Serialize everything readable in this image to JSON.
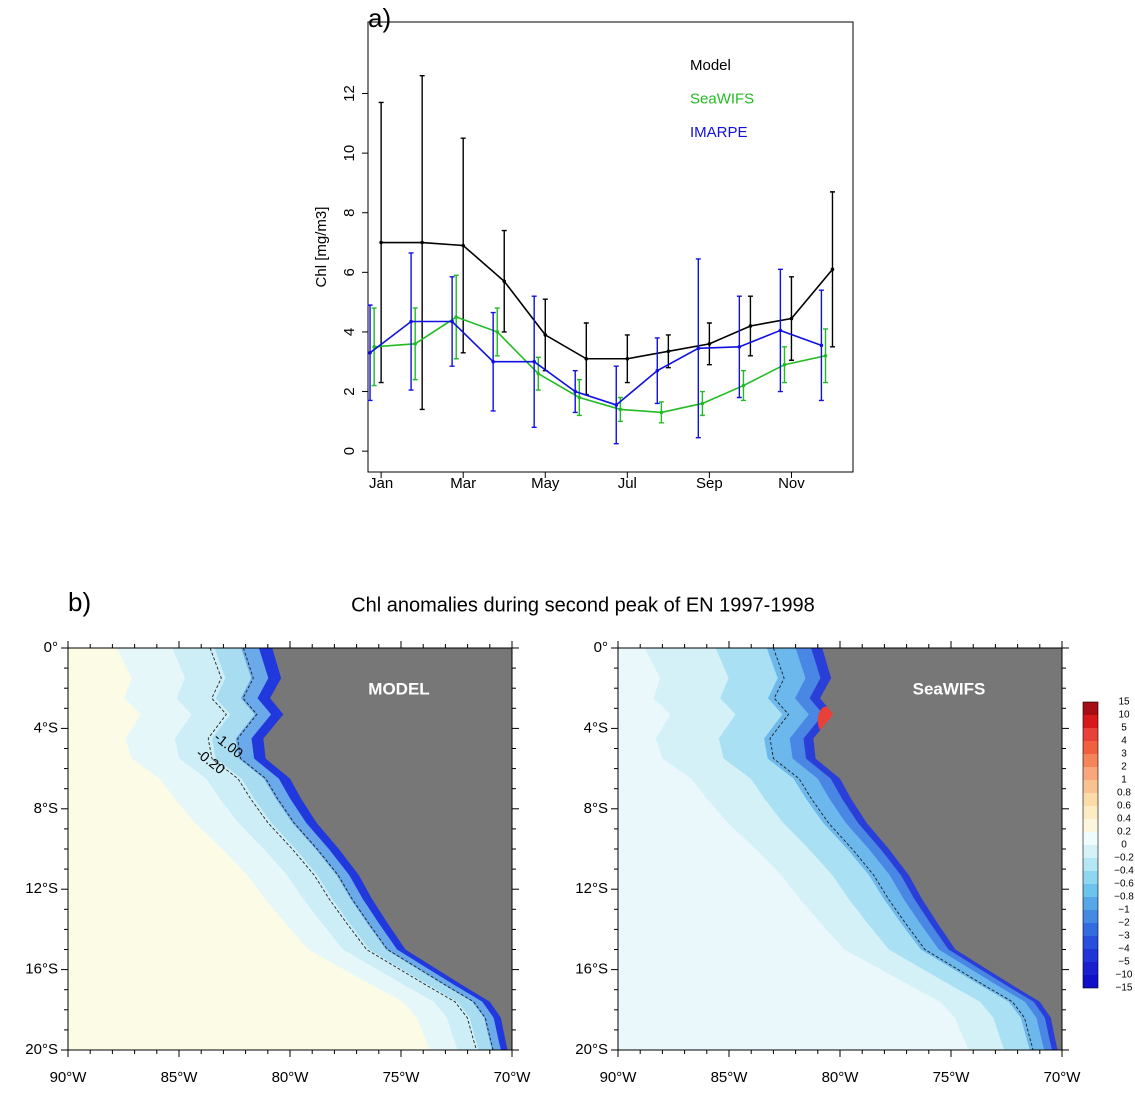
{
  "chart_data": {
    "type": "line",
    "title": "a)",
    "ylabel": "Chl [mg/m3]",
    "xlim": [
      0.68,
      12.5
    ],
    "ylim": [
      -0.7,
      14.4
    ],
    "xticks": [
      {
        "value": 1,
        "label": "Jan"
      },
      {
        "value": 3,
        "label": "Mar"
      },
      {
        "value": 5,
        "label": "May"
      },
      {
        "value": 7,
        "label": "Jul"
      },
      {
        "value": 9,
        "label": "Sep"
      },
      {
        "value": 11,
        "label": "Nov"
      }
    ],
    "yticks": [
      0,
      2,
      4,
      6,
      8,
      10,
      12
    ],
    "series": [
      {
        "name": "Model",
        "color": "#000000",
        "x": [
          1,
          2,
          3,
          4,
          5,
          6,
          7,
          8,
          9,
          10,
          11,
          12
        ],
        "values": [
          7.0,
          7.0,
          6.9,
          5.7,
          3.9,
          3.1,
          3.1,
          3.35,
          3.6,
          4.2,
          4.45,
          6.1
        ],
        "errors": [
          4.7,
          5.6,
          3.6,
          1.7,
          1.2,
          1.2,
          0.8,
          0.55,
          0.7,
          1.0,
          1.4,
          2.6
        ]
      },
      {
        "name": "SeaWIFS",
        "color": "#22bb22",
        "x": [
          0.83,
          1.83,
          2.83,
          3.83,
          4.83,
          5.83,
          6.83,
          7.83,
          8.83,
          9.83,
          10.83,
          11.83
        ],
        "values": [
          3.5,
          3.6,
          4.5,
          4.0,
          2.6,
          1.8,
          1.4,
          1.3,
          1.6,
          2.2,
          2.9,
          3.2
        ],
        "errors": [
          1.3,
          1.2,
          1.4,
          0.8,
          0.55,
          0.6,
          0.4,
          0.35,
          0.4,
          0.5,
          0.6,
          0.9
        ]
      },
      {
        "name": "IMARPE",
        "color": "#1010e0",
        "x": [
          0.73,
          1.73,
          2.73,
          3.73,
          4.73,
          5.73,
          6.73,
          7.73,
          8.73,
          9.73,
          10.73,
          11.73
        ],
        "values": [
          3.3,
          4.35,
          4.35,
          3.0,
          3.0,
          2.0,
          1.55,
          2.7,
          3.45,
          3.5,
          4.05,
          3.55
        ],
        "errors": [
          1.6,
          2.3,
          1.5,
          1.65,
          2.2,
          0.7,
          1.3,
          1.1,
          3.0,
          1.7,
          2.05,
          1.85
        ]
      }
    ]
  },
  "map_figure": {
    "label": "b)",
    "title": "Chl anomalies during second peak of EN 1997-1998",
    "lat_ticks": [
      "0°",
      "4°S",
      "8°S",
      "12°S",
      "16°S",
      "20°S"
    ],
    "lon_ticks": [
      "90°W",
      "85°W",
      "80°W",
      "75°W",
      "70°W"
    ],
    "panels": [
      {
        "name": "MODEL",
        "contour_labels": [
          "-1.00",
          "-0.20"
        ]
      },
      {
        "name": "SeaWIFS"
      }
    ],
    "colorbar": {
      "labels": [
        "15",
        "10",
        "5",
        "4",
        "3",
        "2",
        "1",
        "0.8",
        "0.6",
        "0.4",
        "0.2",
        "0",
        "−0.2",
        "−0.4",
        "−0.6",
        "−0.8",
        "−1",
        "−2",
        "−3",
        "−4",
        "−5",
        "−10",
        "−15"
      ],
      "colors": [
        "#a50f15",
        "#d7191c",
        "#e8413a",
        "#f0603e",
        "#f4845a",
        "#f7a77b",
        "#f8c391",
        "#fbdba8",
        "#fdebc3",
        "#fdf6df",
        "#f0fbfd",
        "#d4f2f8",
        "#b4e6f4",
        "#8fd6f0",
        "#6cc3ec",
        "#55a7e8",
        "#4489e2",
        "#356be0",
        "#2950dc",
        "#2034d8",
        "#1a1fd0",
        "#1010c8"
      ]
    }
  }
}
